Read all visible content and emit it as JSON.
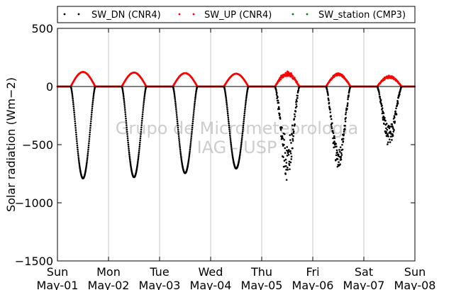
{
  "chart_data": {
    "type": "scatter",
    "title": "",
    "ylabel": "Solar radiation (Wm−2)",
    "xlabel": "",
    "ylim": [
      -1500,
      500
    ],
    "xlim": [
      0,
      7
    ],
    "yticks": [
      500,
      0,
      -500,
      -1000,
      -1500
    ],
    "ytick_labels": [
      "500",
      "0",
      "−500",
      "−1000",
      "−1500"
    ],
    "xticks": [
      0,
      1,
      2,
      3,
      4,
      5,
      6,
      7
    ],
    "xtick_labels": [
      [
        "Sun",
        "May-01"
      ],
      [
        "Mon",
        "May-02"
      ],
      [
        "Tue",
        "May-03"
      ],
      [
        "Wed",
        "May-04"
      ],
      [
        "Thu",
        "May-05"
      ],
      [
        "Fri",
        "May-06"
      ],
      [
        "Sat",
        "May-07"
      ],
      [
        "Sun",
        "May-08"
      ]
    ],
    "grid": "vertical",
    "legend_position": "top",
    "watermark": [
      "Grupo de Micrometeorologia",
      "IAG - USP"
    ],
    "series": [
      {
        "name": "SW_DN (CNR4)",
        "color": "#000000",
        "daily_peaks": [
          {
            "day": 1,
            "min": -790
          },
          {
            "day": 2,
            "min": -780
          },
          {
            "day": 3,
            "min": -745
          },
          {
            "day": 4,
            "min": -705
          },
          {
            "day": 5,
            "min": -810
          },
          {
            "day": 6,
            "min": -700
          },
          {
            "day": 7,
            "min": -520
          }
        ]
      },
      {
        "name": "SW_UP (CNR4)",
        "color": "#ff0000",
        "daily_peaks": [
          {
            "day": 1,
            "max": 125
          },
          {
            "day": 2,
            "max": 120
          },
          {
            "day": 3,
            "max": 115
          },
          {
            "day": 4,
            "max": 110
          },
          {
            "day": 5,
            "max": 130
          },
          {
            "day": 6,
            "max": 115
          },
          {
            "day": 7,
            "max": 95
          }
        ]
      },
      {
        "name": "SW_station (CMP3)",
        "color": "#008000",
        "daily_peaks": []
      }
    ]
  }
}
